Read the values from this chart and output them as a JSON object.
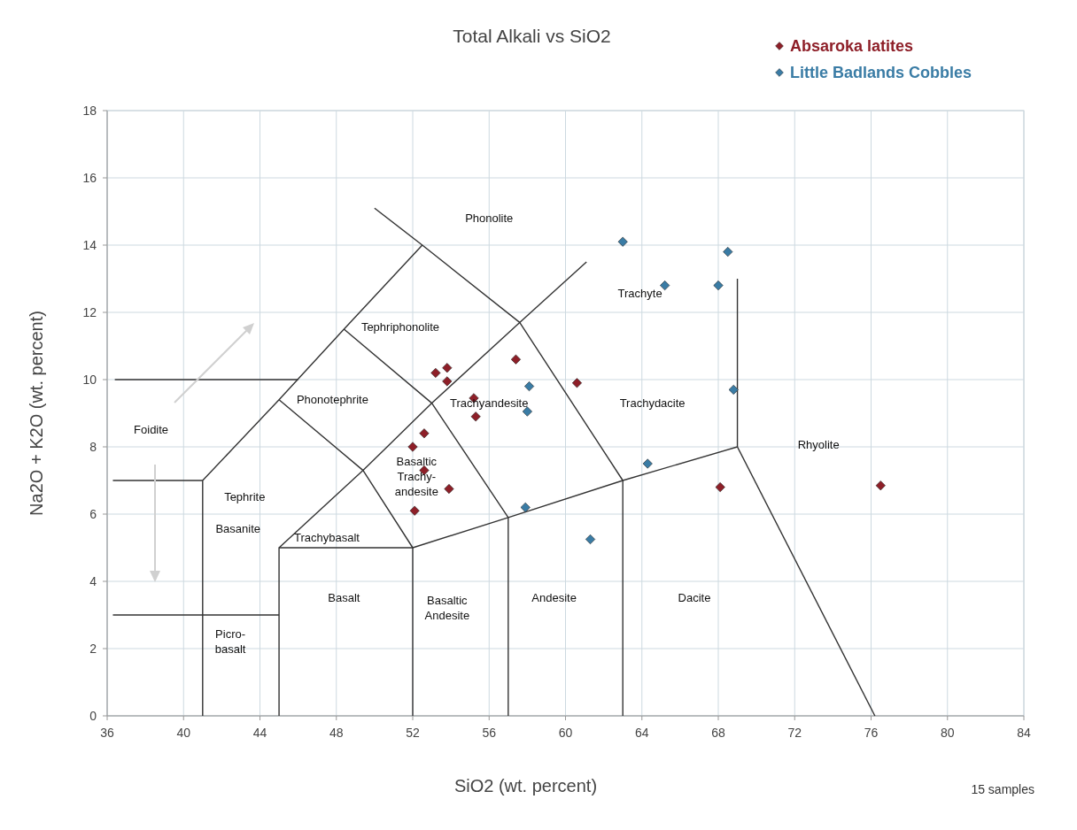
{
  "chart_data": {
    "type": "scatter",
    "title": "Total Alkali vs SiO2",
    "xlabel": "SiO2 (wt. percent)",
    "ylabel": "Na2O + K2O (wt. percent)",
    "xlim": [
      36,
      84
    ],
    "xticks": [
      36,
      40,
      44,
      48,
      52,
      56,
      60,
      64,
      68,
      72,
      76,
      80,
      84
    ],
    "ylim": [
      0,
      18
    ],
    "yticks": [
      0,
      2,
      4,
      6,
      8,
      10,
      12,
      14,
      16,
      18
    ],
    "grid": true,
    "legend": "top right",
    "marker": "diamond",
    "series": [
      {
        "name": "Absaroka latites",
        "color": "#8e1f28",
        "x": [
          53.2,
          53.8,
          53.8,
          57.4,
          60.6,
          55.2,
          55.3,
          52.6,
          52.0,
          52.6,
          53.9,
          52.1,
          68.1,
          76.5
        ],
        "values": [
          10.2,
          10.35,
          9.95,
          10.6,
          9.9,
          9.45,
          8.9,
          8.4,
          8.0,
          7.3,
          6.75,
          6.1,
          6.8,
          6.85
        ]
      },
      {
        "name": "Little Badlands Cobbles",
        "color": "#3a7ca5",
        "x": [
          63.0,
          68.5,
          65.2,
          68.0,
          58.1,
          58.0,
          68.8,
          64.3,
          57.9,
          61.3
        ],
        "values": [
          14.1,
          13.8,
          12.8,
          12.8,
          9.8,
          9.05,
          9.7,
          7.5,
          6.2,
          5.25
        ]
      },
      {
        "type": "line",
        "color": "#333333",
        "marker": "none",
        "x": [
          41,
          41,
          45,
          48.4,
          52.5,
          57.6,
          63,
          69,
          69
        ],
        "values": [
          0,
          7,
          9.4,
          11.5,
          14,
          11.7,
          7,
          8,
          13
        ]
      },
      {
        "type": "line",
        "color": "#333333",
        "marker": "none",
        "x": [
          45,
          45,
          52,
          57,
          63
        ],
        "values": [
          0,
          5,
          5,
          5.9,
          7
        ]
      },
      {
        "type": "line",
        "color": "#333333",
        "marker": "none",
        "x": [
          52,
          52
        ],
        "values": [
          0,
          5
        ]
      },
      {
        "type": "line",
        "color": "#333333",
        "marker": "none",
        "x": [
          57,
          57
        ],
        "values": [
          0,
          5.9
        ]
      },
      {
        "type": "line",
        "color": "#333333",
        "marker": "none",
        "x": [
          63,
          63
        ],
        "values": [
          0,
          7
        ]
      },
      {
        "type": "line",
        "color": "#333333",
        "marker": "none",
        "x": [
          69,
          76.2
        ],
        "values": [
          8,
          0
        ]
      },
      {
        "type": "line",
        "color": "#333333",
        "marker": "none",
        "x": [
          45,
          49.4,
          53,
          57.6,
          61.1
        ],
        "values": [
          5,
          7.3,
          9.3,
          11.7,
          13.5
        ]
      },
      {
        "type": "line",
        "color": "#333333",
        "marker": "none",
        "x": [
          52.5,
          50
        ],
        "values": [
          14,
          15.1
        ]
      },
      {
        "type": "line",
        "color": "#333333",
        "marker": "none",
        "x": [
          45,
          49.4,
          52
        ],
        "values": [
          9.4,
          7.3,
          5
        ]
      },
      {
        "type": "line",
        "color": "#333333",
        "marker": "none",
        "x": [
          48.4,
          53,
          57
        ],
        "values": [
          11.5,
          9.3,
          5.9
        ]
      },
      {
        "type": "line",
        "color": "#333333",
        "marker": "none",
        "x": [
          36.4,
          46
        ],
        "values": [
          10,
          10
        ]
      },
      {
        "type": "line",
        "color": "#333333",
        "marker": "none",
        "x": [
          36.3,
          41
        ],
        "values": [
          7,
          7
        ]
      },
      {
        "type": "line",
        "color": "#333333",
        "marker": "none",
        "x": [
          36.3,
          45
        ],
        "values": [
          3,
          3
        ]
      }
    ],
    "annotations": [
      "Phonolite",
      "Trachyte",
      "Tephriphonolite",
      "Phonotephrite",
      "Trachyandesite",
      "Trachydacite",
      "Foidite",
      "Rhyolite",
      "Basaltic\nTrachy-\nandesite",
      "Tephrite",
      "Basanite",
      "Trachybasalt",
      "Basalt",
      "Basaltic\nAndesite",
      "Andesite",
      "Dacite",
      "Picro-\nbasalt",
      "15 samples"
    ]
  }
}
